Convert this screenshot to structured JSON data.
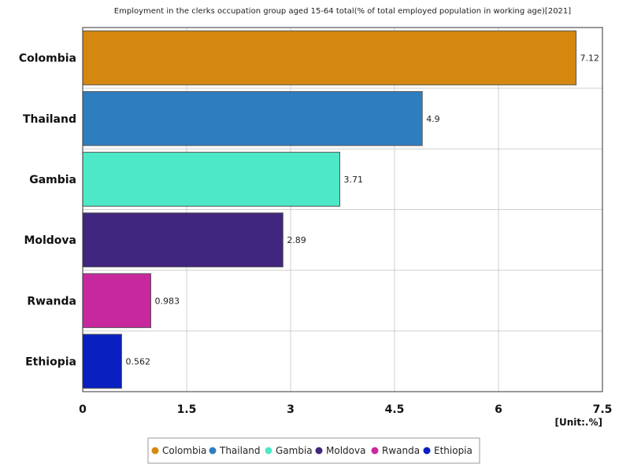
{
  "chart_data": {
    "type": "bar",
    "orientation": "horizontal",
    "title": "Employment in the clerks occupation group aged 15-64 total(% of total employed population in working age)[2021]",
    "unit": "[Unit:.%]",
    "categories": [
      "Colombia",
      "Thailand",
      "Gambia",
      "Moldova",
      "Rwanda",
      "Ethiopia"
    ],
    "values": [
      7.12,
      4.9,
      3.71,
      2.89,
      0.983,
      0.562
    ],
    "value_labels": [
      "7.12",
      "4.9",
      "3.71",
      "2.89",
      "0.983",
      "0.562"
    ],
    "colors": [
      "#d4880f",
      "#2e7ebf",
      "#4de8c8",
      "#40267e",
      "#c8289e",
      "#0a1fbf"
    ],
    "xlim": [
      0,
      7.5
    ],
    "xticks": [
      0,
      1.5,
      3,
      4.5,
      6,
      7.5
    ],
    "xtick_labels": [
      "0",
      "1.5",
      "3",
      "4.5",
      "6",
      "7.5"
    ],
    "grid": true,
    "legend": {
      "position": "bottom-center",
      "entries": [
        "Colombia",
        "Thailand",
        "Gambia",
        "Moldova",
        "Rwanda",
        "Ethiopia"
      ]
    }
  }
}
